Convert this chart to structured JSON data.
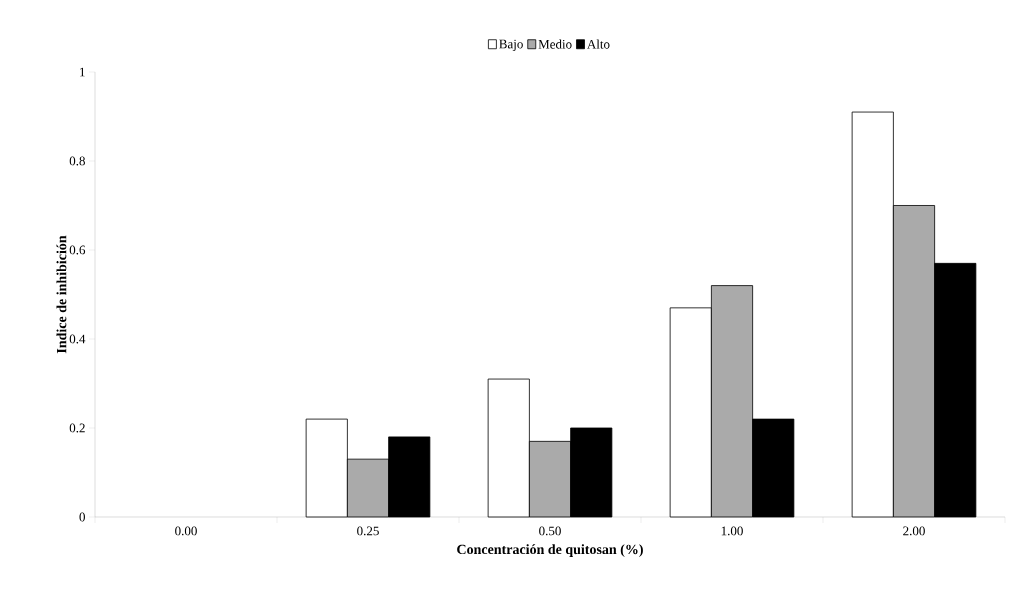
{
  "chart_data": {
    "type": "bar",
    "xlabel": "Concentración de quitosan (%)",
    "ylabel": "Indice de inhibición",
    "categories": [
      "0.00",
      "0.25",
      "0.50",
      "1.00",
      "2.00"
    ],
    "series": [
      {
        "name": "Bajo",
        "color": "#ffffff",
        "values": [
          null,
          0.22,
          0.31,
          0.47,
          0.91
        ]
      },
      {
        "name": "Medio",
        "color": "#aaaaaa",
        "values": [
          null,
          0.13,
          0.17,
          0.52,
          0.7
        ]
      },
      {
        "name": "Alto",
        "color": "#000000",
        "values": [
          null,
          0.18,
          0.2,
          0.22,
          0.57
        ]
      }
    ],
    "ylim": [
      0,
      1
    ],
    "yticks": [
      0,
      0.2,
      0.4,
      0.6,
      0.8,
      1
    ],
    "legend": "top"
  }
}
